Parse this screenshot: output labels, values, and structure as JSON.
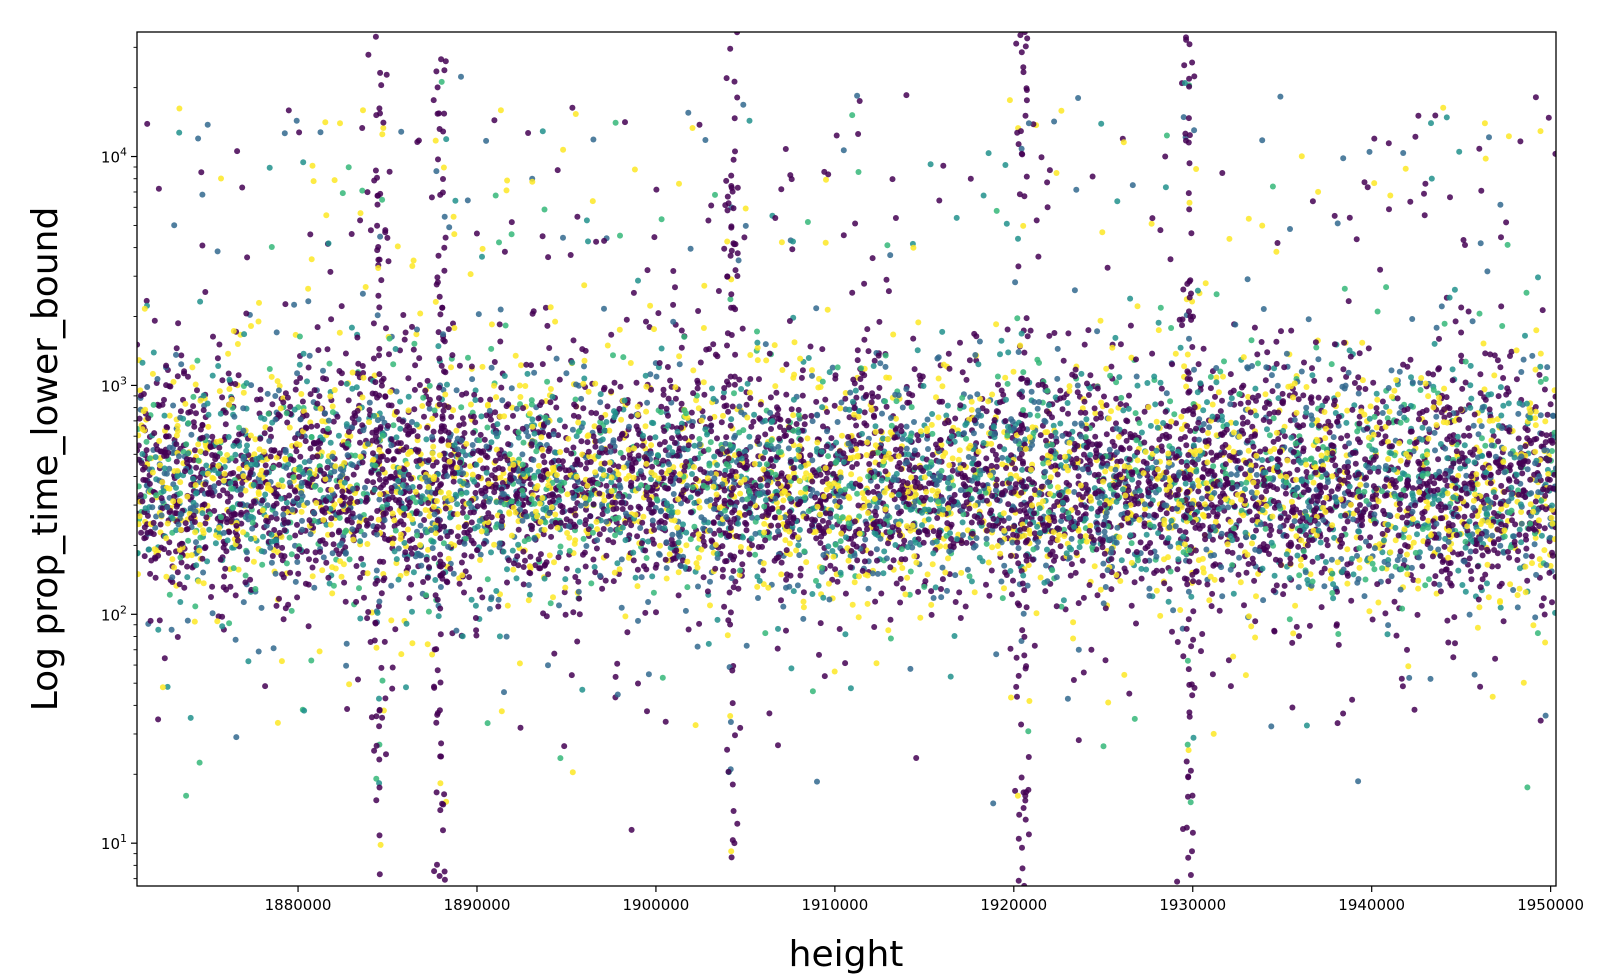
{
  "chart_data": {
    "type": "scatter",
    "xlabel": "height",
    "ylabel": "Log prop_time_lower_bound",
    "yscale": "log",
    "xlim": [
      1871000,
      1950300
    ],
    "ylim": [
      6.5,
      35000
    ],
    "grid": false,
    "legend": "none",
    "x_ticks": [
      {
        "value": 1880000,
        "label": "1880000"
      },
      {
        "value": 1890000,
        "label": "1890000"
      },
      {
        "value": 1900000,
        "label": "1900000"
      },
      {
        "value": 1910000,
        "label": "1910000"
      },
      {
        "value": 1920000,
        "label": "1920000"
      },
      {
        "value": 1930000,
        "label": "1930000"
      },
      {
        "value": 1940000,
        "label": "1940000"
      },
      {
        "value": 1950000,
        "label": "1950000"
      }
    ],
    "y_ticks": [
      {
        "value": 10,
        "base": "10",
        "exp": "1"
      },
      {
        "value": 100,
        "base": "10",
        "exp": "2"
      },
      {
        "value": 1000,
        "base": "10",
        "exp": "3"
      },
      {
        "value": 10000,
        "base": "10",
        "exp": "4"
      }
    ],
    "colormap": [
      "#440154",
      "#31688e",
      "#21918c",
      "#35b779",
      "#fde725"
    ],
    "series": [
      {
        "bands": [
          {
            "y_center": 330,
            "spread_decades": 0.22,
            "weight": 0.8
          },
          {
            "y_center": 750,
            "spread_decades": 0.18,
            "weight": 0.12
          },
          {
            "y_center": 1500,
            "spread_decades": 0.2,
            "weight": 0.03
          },
          {
            "y_center": 4500,
            "spread_decades": 0.07,
            "weight": 0.01
          },
          {
            "y_center": 7500,
            "spread_decades": 0.07,
            "weight": 0.01
          },
          {
            "y_center": 13000,
            "spread_decades": 0.08,
            "weight": 0.01
          },
          {
            "y_center": 60,
            "spread_decades": 0.25,
            "weight": 0.02
          }
        ],
        "vertical_streaks_x": [
          1884500,
          1888000,
          1904200,
          1920500,
          1929800
        ],
        "point_count_estimate": 60000
      }
    ]
  }
}
